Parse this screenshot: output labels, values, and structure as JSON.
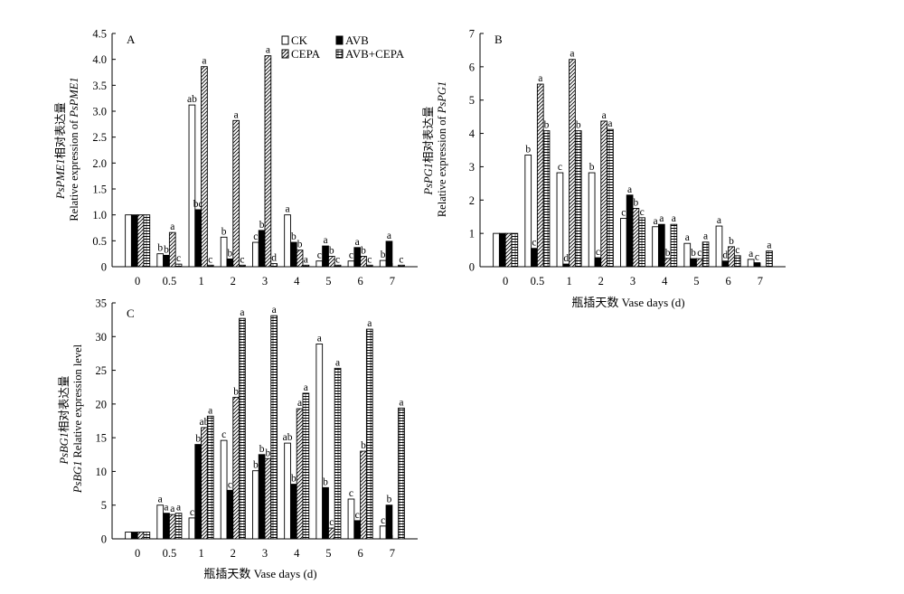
{
  "legend": [
    {
      "key": "CK",
      "label": "CK",
      "pattern": "white"
    },
    {
      "key": "AVB",
      "label": "AVB",
      "pattern": "black"
    },
    {
      "key": "CEPA",
      "label": "CEPA",
      "pattern": "diag"
    },
    {
      "key": "AVBCEPA",
      "label": "AVB+CEPA",
      "pattern": "grid"
    }
  ],
  "colors": {
    "stroke": "#000000",
    "fill_black": "#000000",
    "fill_white": "#ffffff"
  },
  "xlabel_bottom": "瓶插天数 Vase days (d)",
  "chart_data": [
    {
      "id": "A",
      "type": "bar",
      "panel_label": "A",
      "ylabel_line1_italic": "PsPME1",
      "ylabel_line1_rest": "相对表达量",
      "ylabel_line2_pre": "Relative expression of ",
      "ylabel_line2_italic": "PsPME1",
      "ylabel_line2_post": "",
      "categories": [
        "0",
        "0.5",
        "1",
        "2",
        "3",
        "4",
        "5",
        "6",
        "7"
      ],
      "ylim": [
        0,
        4.5
      ],
      "yticks": [
        "0",
        "0.5",
        "1.0",
        "1.5",
        "2.0",
        "2.5",
        "3.0",
        "3.5",
        "4.0",
        "4.5"
      ],
      "series": [
        {
          "name": "CK",
          "values": [
            1.0,
            0.25,
            3.12,
            0.57,
            0.47,
            1.0,
            0.11,
            0.11,
            0.12
          ],
          "labels": [
            "",
            "b",
            "ab",
            "b",
            "c",
            "a",
            "c",
            "c",
            "b"
          ]
        },
        {
          "name": "AVB",
          "values": [
            1.0,
            0.22,
            1.1,
            0.15,
            0.7,
            0.47,
            0.4,
            0.37,
            0.49
          ],
          "labels": [
            "",
            "b",
            "bc",
            "b",
            "b",
            "b",
            "a",
            "a",
            "a"
          ]
        },
        {
          "name": "CEPA",
          "values": [
            1.0,
            0.66,
            3.86,
            2.82,
            4.07,
            0.32,
            0.2,
            0.2,
            0.0
          ],
          "labels": [
            "",
            "a",
            "a",
            "a",
            "a",
            "b",
            "b",
            "b",
            ""
          ]
        },
        {
          "name": "AVB+CEPA",
          "values": [
            1.0,
            0.05,
            0.03,
            0.03,
            0.06,
            0.03,
            0.03,
            0.03,
            0.03
          ],
          "labels": [
            "",
            "c",
            "c",
            "c",
            "d",
            "a",
            "c",
            "c",
            "c"
          ]
        }
      ]
    },
    {
      "id": "B",
      "type": "bar",
      "panel_label": "B",
      "ylabel_line1_italic": "PsPG1",
      "ylabel_line1_rest": "相对表达量",
      "ylabel_line2_pre": "Relative expression of ",
      "ylabel_line2_italic": "PsPG1",
      "ylabel_line2_post": "",
      "categories": [
        "0",
        "0.5",
        "1",
        "2",
        "3",
        "4",
        "5",
        "6",
        "7"
      ],
      "ylim": [
        0,
        7
      ],
      "yticks": [
        "0",
        "1",
        "2",
        "3",
        "4",
        "5",
        "6",
        "7"
      ],
      "series": [
        {
          "name": "CK",
          "values": [
            1.0,
            3.35,
            2.82,
            2.82,
            1.45,
            1.2,
            0.7,
            1.22,
            0.22
          ],
          "labels": [
            "",
            "b",
            "c",
            "b",
            "c",
            "a",
            "a",
            "a",
            "a"
          ]
        },
        {
          "name": "AVB",
          "values": [
            1.0,
            0.55,
            0.08,
            0.27,
            2.15,
            1.27,
            0.24,
            0.17,
            0.12
          ],
          "labels": [
            "",
            "c",
            "d",
            "c",
            "a",
            "a",
            "b",
            "d",
            "c"
          ]
        },
        {
          "name": "CEPA",
          "values": [
            1.0,
            5.48,
            6.22,
            4.37,
            1.75,
            0.25,
            0.24,
            0.6,
            0.0
          ],
          "labels": [
            "",
            "a",
            "a",
            "a",
            "b",
            "b",
            "c",
            "b",
            ""
          ]
        },
        {
          "name": "AVB+CEPA",
          "values": [
            1.0,
            4.08,
            4.08,
            4.12,
            1.47,
            1.27,
            0.74,
            0.33,
            0.47
          ],
          "labels": [
            "",
            "b",
            "b",
            "a",
            "c",
            "a",
            "a",
            "c",
            "a"
          ]
        }
      ]
    },
    {
      "id": "C",
      "type": "bar",
      "panel_label": "C",
      "ylabel_line1_italic": "PsBG1",
      "ylabel_line1_rest": "相对表达量",
      "ylabel_line2_pre": "",
      "ylabel_line2_italic": "PsBG1",
      "ylabel_line2_post": " Relative expression level",
      "categories": [
        "0",
        "0.5",
        "1",
        "2",
        "3",
        "4",
        "5",
        "6",
        "7"
      ],
      "ylim": [
        0,
        35
      ],
      "yticks": [
        "0",
        "5",
        "10",
        "15",
        "20",
        "25",
        "30",
        "35"
      ],
      "series": [
        {
          "name": "CK",
          "values": [
            1.0,
            5.0,
            3.1,
            14.6,
            10.1,
            14.2,
            28.9,
            5.9,
            1.9
          ],
          "labels": [
            "",
            "a",
            "c",
            "c",
            "b",
            "ab",
            "a",
            "c",
            "c"
          ]
        },
        {
          "name": "AVB",
          "values": [
            1.0,
            3.8,
            14.0,
            7.2,
            12.5,
            8.1,
            7.6,
            2.7,
            5.0
          ],
          "labels": [
            "",
            "a",
            "b",
            "c",
            "b",
            "b",
            "b",
            "c",
            "b"
          ]
        },
        {
          "name": "CEPA",
          "values": [
            1.0,
            3.6,
            16.5,
            21.0,
            11.9,
            19.3,
            1.6,
            13.0,
            0.0
          ],
          "labels": [
            "",
            "a",
            "ab",
            "b",
            "b",
            "a",
            "c",
            "b",
            ""
          ]
        },
        {
          "name": "AVB+CEPA",
          "values": [
            1.0,
            3.8,
            18.2,
            32.7,
            33.1,
            21.6,
            25.3,
            31.1,
            19.4
          ],
          "labels": [
            "",
            "a",
            "a",
            "a",
            "a",
            "a",
            "a",
            "a",
            "a"
          ]
        }
      ]
    }
  ]
}
